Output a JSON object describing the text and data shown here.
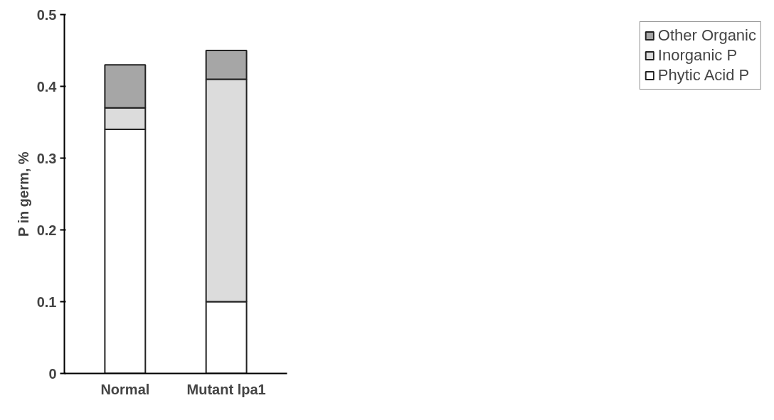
{
  "chart_data": {
    "type": "bar",
    "stacked": true,
    "ylabel": "P in germ, %",
    "categories": [
      "Normal",
      "Mutant lpa1"
    ],
    "series": [
      {
        "name": "Phytic Acid P",
        "color": "#ffffff",
        "values": [
          0.34,
          0.1
        ]
      },
      {
        "name": "Inorganic P",
        "color": "#dcdcdc",
        "values": [
          0.03,
          0.31
        ]
      },
      {
        "name": "Other Organic",
        "color": "#a6a6a6",
        "values": [
          0.06,
          0.04
        ]
      }
    ],
    "ylim": [
      0,
      0.5
    ],
    "yticks": [
      0,
      0.1,
      0.2,
      0.3,
      0.4,
      0.5
    ],
    "grid": false,
    "legend": "right"
  }
}
